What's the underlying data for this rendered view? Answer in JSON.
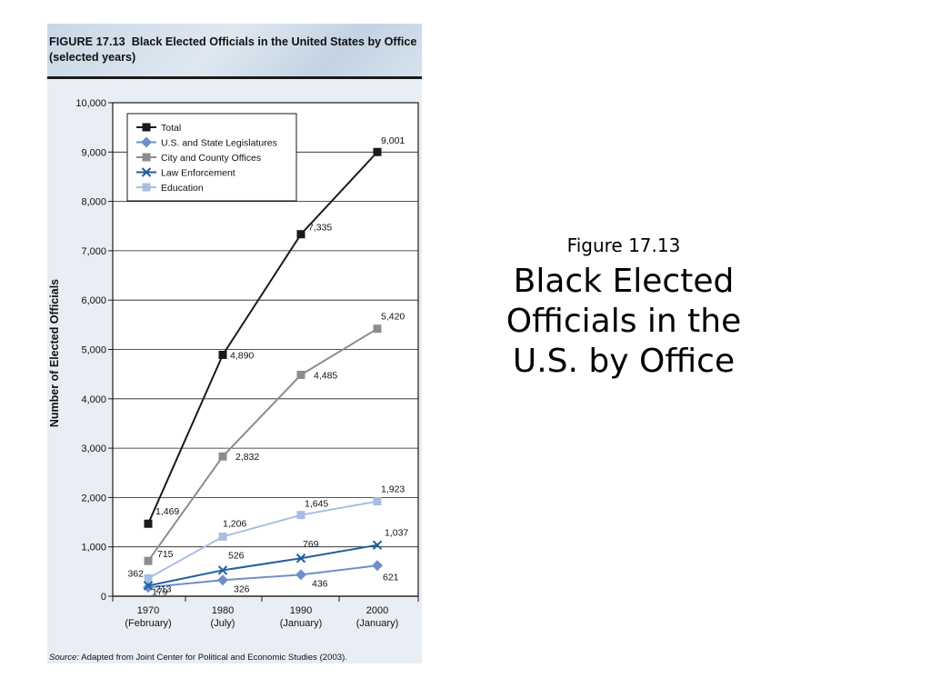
{
  "figure": {
    "label": "FIGURE 17.13",
    "title": "Black Elected Officials in the United States by Office (selected years)",
    "source_label": "Source:",
    "source_text": "Adapted from Joint Center for Political and Economic Studies (2003)."
  },
  "slide": {
    "caption_label": "Figure 17.13",
    "caption_title": "Black Elected Officials in the U.S. by Office"
  },
  "chart_data": {
    "type": "line",
    "title": "Black Elected Officials in the United States by Office (selected years)",
    "xlabel": "",
    "ylabel": "Number of Elected Officials",
    "ylim": [
      0,
      10000
    ],
    "yticks": [
      0,
      1000,
      2000,
      3000,
      4000,
      5000,
      6000,
      7000,
      8000,
      9000,
      10000
    ],
    "ytick_labels": [
      "0",
      "1,000",
      "2,000",
      "3,000",
      "4,000",
      "5,000",
      "6,000",
      "7,000",
      "8,000",
      "9,000",
      "10,000"
    ],
    "categories": [
      {
        "year": "1970",
        "month": "(February)"
      },
      {
        "year": "1980",
        "month": "(July)"
      },
      {
        "year": "1990",
        "month": "(January)"
      },
      {
        "year": "2000",
        "month": "(January)"
      }
    ],
    "grid": true,
    "legend_position": "top-left",
    "series": [
      {
        "name": "Total",
        "color": "#1a1a1a",
        "marker": "square",
        "values": [
          1469,
          4890,
          7335,
          9001
        ],
        "labels": [
          "1,469",
          "4,890",
          "7,335",
          "9,001"
        ]
      },
      {
        "name": "U.S. and State Legislatures",
        "color": "#6f8fc8",
        "marker": "diamond",
        "values": [
          179,
          326,
          436,
          621
        ],
        "labels": [
          "179",
          "326",
          "436",
          "621"
        ]
      },
      {
        "name": "City and County Offices",
        "color": "#8c8c8c",
        "marker": "square",
        "values": [
          715,
          2832,
          4485,
          5420
        ],
        "labels": [
          "715",
          "2,832",
          "4,485",
          "5,420"
        ]
      },
      {
        "name": "Law Enforcement",
        "color": "#1f5f9e",
        "marker": "x",
        "values": [
          213,
          526,
          769,
          1037
        ],
        "labels": [
          "213",
          "526",
          "769",
          "1,037"
        ]
      },
      {
        "name": "Education",
        "color": "#a9bde3",
        "marker": "square",
        "values": [
          362,
          1206,
          1645,
          1923
        ],
        "labels": [
          "362",
          "1,206",
          "1,645",
          "1,923"
        ]
      }
    ]
  }
}
